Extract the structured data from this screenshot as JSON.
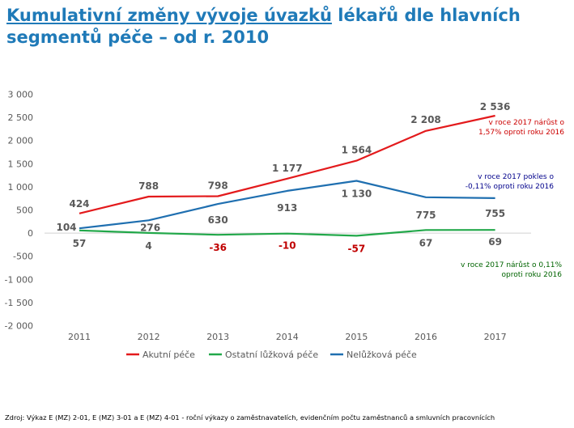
{
  "title": {
    "underlined": "Kumulativní změny vývoje úvazků",
    "rest": " lékařů dle hlavních segmentů péče – od r. 2010"
  },
  "footer": "Zdroj: Výkaz E (MZ) 2-01, E (MZ) 3-01 a E (MZ) 4-01 - roční výkazy o zaměstnavatelích, evidenčním počtu zaměstnanců a smluvních pracovnících",
  "chart_data": {
    "type": "line",
    "categories": [
      "2011",
      "2012",
      "2013",
      "2014",
      "2015",
      "2016",
      "2017"
    ],
    "ylim": [
      -2000,
      3000
    ],
    "yticks": [
      3000,
      2500,
      2000,
      1500,
      1000,
      500,
      0,
      -500,
      -1000,
      -1500,
      -2000
    ],
    "ytick_labels": [
      "3 000",
      "2 500",
      "2 000",
      "1 500",
      "1 000",
      "500",
      "0",
      "-500",
      "-1 000",
      "-1 500",
      "-2 000"
    ],
    "grid": false,
    "legend_position": "bottom",
    "series": [
      {
        "name": "Akutní péče",
        "color": "#e31a1c",
        "values": [
          424,
          788,
          798,
          1177,
          1564,
          2208,
          2536
        ],
        "labels": [
          "424",
          "788",
          "798",
          "1 177",
          "1 564",
          "2 208",
          "2 536"
        ],
        "label_colors": [
          "#595959",
          "#595959",
          "#595959",
          "#595959",
          "#595959",
          "#595959",
          "#595959"
        ]
      },
      {
        "name": "Ostatní lůžková péče",
        "color": "#22a84a",
        "values": [
          57,
          4,
          -36,
          -10,
          -57,
          67,
          69
        ],
        "labels": [
          "57",
          "4",
          "-36",
          "-10",
          "-57",
          "67",
          "69"
        ],
        "label_colors": [
          "#595959",
          "#595959",
          "#c00000",
          "#c00000",
          "#c00000",
          "#595959",
          "#595959"
        ]
      },
      {
        "name": "Nelůžková péče",
        "color": "#1f6fb0",
        "values": [
          104,
          276,
          630,
          913,
          1130,
          775,
          755
        ],
        "labels": [
          "104",
          "276",
          "630",
          "913",
          "1 130",
          "775",
          "755"
        ],
        "label_colors": [
          "#595959",
          "#595959",
          "#595959",
          "#595959",
          "#595959",
          "#595959",
          "#595959"
        ]
      }
    ],
    "annotations": [
      {
        "lines": [
          "v roce 2017 nárůst o",
          "1,57% oproti roku 2016"
        ],
        "color": "#cc0000"
      },
      {
        "lines": [
          "v roce 2017 pokles o",
          "-0,11% oproti roku 2016"
        ],
        "color": "#00008b"
      },
      {
        "lines": [
          "v roce 2017 nárůst o 0,11%",
          "oproti roku 2016"
        ],
        "color": "#006400"
      }
    ]
  }
}
